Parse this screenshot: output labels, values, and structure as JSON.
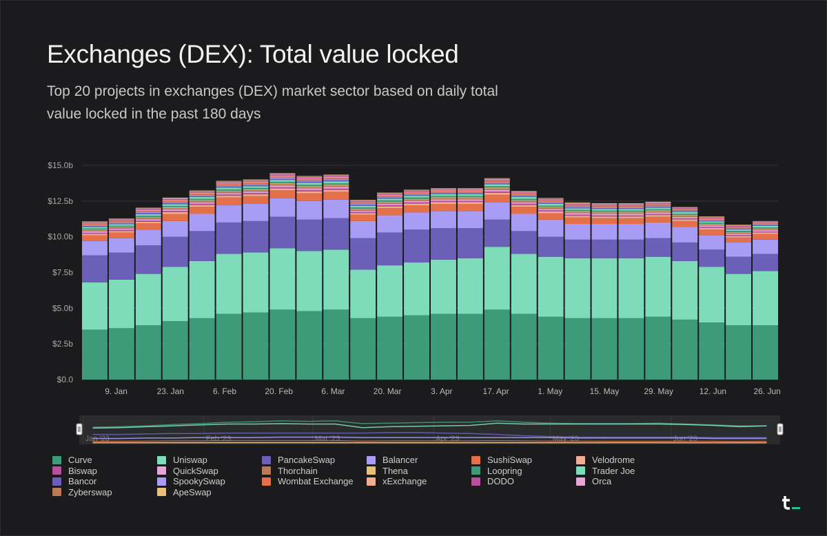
{
  "header": {
    "title": "Exchanges (DEX): Total value locked",
    "subtitle": "Top 20 projects in exchanges (DEX) market sector based on daily total value locked in the past 180 days"
  },
  "logo": {
    "text": "t_"
  },
  "chart_data": {
    "type": "bar",
    "stacked": true,
    "title": "Exchanges (DEX): Total value locked",
    "subtitle": "Top 20 projects in exchanges (DEX) market sector based on daily total value locked in the past 180 days",
    "ylim": [
      0,
      15
    ],
    "y_ticks": [
      "$0.0",
      "$2.5b",
      "$5.0b",
      "$7.5b",
      "$10.0b",
      "$12.5b",
      "$15.0b"
    ],
    "x_ticks": [
      "9. Jan",
      "23. Jan",
      "6. Feb",
      "20. Feb",
      "6. Mar",
      "20. Mar",
      "3. Apr",
      "17. Apr",
      "1. May",
      "15. May",
      "29. May",
      "12. Jun",
      "26. Jun"
    ],
    "navigator_ticks": [
      "Jan '23",
      "Feb '23",
      "Mar '23",
      "Apr '23",
      "May '23",
      "Jun '23"
    ],
    "grid": true,
    "legend_position": "bottom",
    "unit": "USD billions",
    "x": [
      "2023-01-02",
      "2023-01-09",
      "2023-01-16",
      "2023-01-23",
      "2023-01-30",
      "2023-02-06",
      "2023-02-13",
      "2023-02-20",
      "2023-02-27",
      "2023-03-06",
      "2023-03-13",
      "2023-03-20",
      "2023-03-27",
      "2023-04-03",
      "2023-04-10",
      "2023-04-17",
      "2023-04-24",
      "2023-05-01",
      "2023-05-08",
      "2023-05-15",
      "2023-05-22",
      "2023-05-29",
      "2023-06-05",
      "2023-06-12",
      "2023-06-19",
      "2023-06-26"
    ],
    "series": [
      {
        "name": "Curve",
        "color": "#3f9a7a",
        "values": [
          3.5,
          3.6,
          3.8,
          4.1,
          4.3,
          4.6,
          4.7,
          4.9,
          4.8,
          4.9,
          4.3,
          4.4,
          4.5,
          4.6,
          4.6,
          4.9,
          4.6,
          4.4,
          4.3,
          4.3,
          4.3,
          4.4,
          4.2,
          4.0,
          3.8,
          3.8
        ]
      },
      {
        "name": "Uniswap",
        "color": "#7fdcbb",
        "values": [
          3.3,
          3.4,
          3.6,
          3.8,
          4.0,
          4.2,
          4.2,
          4.3,
          4.2,
          4.2,
          3.4,
          3.6,
          3.7,
          3.8,
          3.9,
          4.4,
          4.2,
          4.2,
          4.2,
          4.2,
          4.2,
          4.2,
          4.1,
          3.9,
          3.6,
          3.8
        ]
      },
      {
        "name": "PancakeSwap",
        "color": "#6b5fb8",
        "values": [
          1.9,
          1.9,
          2.0,
          2.1,
          2.1,
          2.2,
          2.2,
          2.2,
          2.2,
          2.2,
          2.2,
          2.3,
          2.3,
          2.2,
          2.1,
          1.9,
          1.6,
          1.4,
          1.3,
          1.3,
          1.3,
          1.3,
          1.3,
          1.2,
          1.2,
          1.2
        ]
      },
      {
        "name": "Balancer",
        "color": "#a99cf5",
        "values": [
          1.0,
          1.0,
          1.1,
          1.1,
          1.2,
          1.2,
          1.2,
          1.3,
          1.3,
          1.3,
          1.2,
          1.2,
          1.2,
          1.2,
          1.2,
          1.2,
          1.2,
          1.2,
          1.1,
          1.1,
          1.1,
          1.1,
          1.1,
          1.0,
          1.0,
          1.0
        ]
      },
      {
        "name": "SushiSwap",
        "color": "#e4704a",
        "values": [
          0.4,
          0.4,
          0.45,
          0.5,
          0.5,
          0.55,
          0.55,
          0.55,
          0.55,
          0.55,
          0.45,
          0.5,
          0.5,
          0.5,
          0.5,
          0.55,
          0.5,
          0.45,
          0.45,
          0.4,
          0.4,
          0.4,
          0.4,
          0.4,
          0.35,
          0.4
        ]
      },
      {
        "name": "Velodrome",
        "color": "#f2ae92",
        "values": [
          0.1,
          0.1,
          0.1,
          0.12,
          0.12,
          0.12,
          0.12,
          0.13,
          0.13,
          0.13,
          0.11,
          0.12,
          0.12,
          0.12,
          0.12,
          0.13,
          0.12,
          0.12,
          0.12,
          0.12,
          0.12,
          0.12,
          0.11,
          0.11,
          0.1,
          0.1
        ]
      },
      {
        "name": "Biswap",
        "color": "#b5519f",
        "values": [
          0.08,
          0.08,
          0.08,
          0.09,
          0.09,
          0.09,
          0.09,
          0.09,
          0.09,
          0.09,
          0.08,
          0.09,
          0.09,
          0.09,
          0.09,
          0.09,
          0.09,
          0.08,
          0.08,
          0.08,
          0.08,
          0.08,
          0.08,
          0.08,
          0.07,
          0.07
        ]
      },
      {
        "name": "QuickSwap",
        "color": "#e7a6d6",
        "values": [
          0.09,
          0.09,
          0.1,
          0.1,
          0.1,
          0.1,
          0.1,
          0.11,
          0.11,
          0.11,
          0.09,
          0.1,
          0.1,
          0.1,
          0.1,
          0.11,
          0.1,
          0.1,
          0.1,
          0.1,
          0.1,
          0.1,
          0.09,
          0.09,
          0.09,
          0.09
        ]
      },
      {
        "name": "Thorchain",
        "color": "#b97a55",
        "values": [
          0.08,
          0.08,
          0.09,
          0.1,
          0.1,
          0.1,
          0.1,
          0.1,
          0.1,
          0.1,
          0.09,
          0.09,
          0.09,
          0.1,
          0.1,
          0.1,
          0.1,
          0.09,
          0.09,
          0.09,
          0.09,
          0.09,
          0.09,
          0.08,
          0.08,
          0.08
        ]
      },
      {
        "name": "Thena",
        "color": "#e7c27b",
        "values": [
          0.04,
          0.04,
          0.05,
          0.05,
          0.05,
          0.05,
          0.05,
          0.06,
          0.06,
          0.06,
          0.05,
          0.05,
          0.05,
          0.05,
          0.05,
          0.06,
          0.05,
          0.05,
          0.05,
          0.05,
          0.05,
          0.05,
          0.05,
          0.04,
          0.04,
          0.04
        ]
      },
      {
        "name": "Loopring",
        "color": "#3f9a7a",
        "values": [
          0.09,
          0.09,
          0.1,
          0.1,
          0.1,
          0.11,
          0.11,
          0.11,
          0.11,
          0.11,
          0.09,
          0.1,
          0.1,
          0.1,
          0.1,
          0.1,
          0.1,
          0.09,
          0.09,
          0.09,
          0.09,
          0.09,
          0.09,
          0.08,
          0.08,
          0.08
        ]
      },
      {
        "name": "Trader Joe",
        "color": "#7fdcbb",
        "values": [
          0.1,
          0.1,
          0.11,
          0.12,
          0.12,
          0.12,
          0.12,
          0.13,
          0.13,
          0.13,
          0.11,
          0.12,
          0.12,
          0.12,
          0.12,
          0.13,
          0.12,
          0.12,
          0.11,
          0.11,
          0.11,
          0.11,
          0.11,
          0.1,
          0.1,
          0.1
        ]
      },
      {
        "name": "Bancor",
        "color": "#6b5fb8",
        "values": [
          0.07,
          0.07,
          0.08,
          0.08,
          0.08,
          0.08,
          0.08,
          0.08,
          0.08,
          0.08,
          0.07,
          0.07,
          0.07,
          0.07,
          0.07,
          0.07,
          0.07,
          0.07,
          0.07,
          0.07,
          0.07,
          0.07,
          0.06,
          0.06,
          0.06,
          0.06
        ]
      },
      {
        "name": "SpookySwap",
        "color": "#a99cf5",
        "values": [
          0.06,
          0.06,
          0.07,
          0.07,
          0.07,
          0.07,
          0.07,
          0.07,
          0.07,
          0.07,
          0.06,
          0.06,
          0.06,
          0.06,
          0.06,
          0.06,
          0.06,
          0.06,
          0.06,
          0.06,
          0.06,
          0.06,
          0.05,
          0.05,
          0.05,
          0.05
        ]
      },
      {
        "name": "Wombat Exchange",
        "color": "#e4704a",
        "values": [
          0.07,
          0.07,
          0.08,
          0.08,
          0.08,
          0.09,
          0.09,
          0.09,
          0.09,
          0.09,
          0.08,
          0.08,
          0.08,
          0.08,
          0.08,
          0.08,
          0.08,
          0.07,
          0.07,
          0.07,
          0.07,
          0.07,
          0.07,
          0.06,
          0.06,
          0.06
        ]
      },
      {
        "name": "xExchange",
        "color": "#f2ae92",
        "values": [
          0.05,
          0.05,
          0.06,
          0.06,
          0.06,
          0.06,
          0.06,
          0.06,
          0.06,
          0.06,
          0.05,
          0.05,
          0.05,
          0.05,
          0.05,
          0.05,
          0.05,
          0.05,
          0.05,
          0.05,
          0.05,
          0.05,
          0.05,
          0.05,
          0.04,
          0.04
        ]
      },
      {
        "name": "DODO",
        "color": "#b5519f",
        "values": [
          0.05,
          0.05,
          0.06,
          0.06,
          0.06,
          0.06,
          0.06,
          0.06,
          0.06,
          0.06,
          0.05,
          0.05,
          0.05,
          0.05,
          0.05,
          0.06,
          0.05,
          0.05,
          0.05,
          0.05,
          0.05,
          0.05,
          0.05,
          0.05,
          0.05,
          0.05
        ]
      },
      {
        "name": "Orca",
        "color": "#e7a6d6",
        "values": [
          0.04,
          0.04,
          0.05,
          0.05,
          0.05,
          0.05,
          0.05,
          0.05,
          0.05,
          0.05,
          0.04,
          0.05,
          0.05,
          0.05,
          0.05,
          0.05,
          0.05,
          0.05,
          0.05,
          0.05,
          0.05,
          0.05,
          0.04,
          0.04,
          0.04,
          0.04
        ]
      },
      {
        "name": "Zyberswap",
        "color": "#b97a55",
        "values": [
          0.02,
          0.02,
          0.02,
          0.03,
          0.03,
          0.03,
          0.03,
          0.03,
          0.03,
          0.03,
          0.03,
          0.03,
          0.03,
          0.03,
          0.03,
          0.03,
          0.03,
          0.03,
          0.03,
          0.03,
          0.03,
          0.03,
          0.02,
          0.02,
          0.02,
          0.02
        ]
      },
      {
        "name": "ApeSwap",
        "color": "#e7c27b",
        "values": [
          0.03,
          0.03,
          0.03,
          0.03,
          0.03,
          0.03,
          0.03,
          0.03,
          0.03,
          0.03,
          0.03,
          0.03,
          0.03,
          0.03,
          0.03,
          0.03,
          0.03,
          0.03,
          0.03,
          0.03,
          0.03,
          0.03,
          0.02,
          0.02,
          0.02,
          0.02
        ]
      }
    ]
  },
  "legend": [
    {
      "label": "Curve",
      "color": "#3f9a7a"
    },
    {
      "label": "Uniswap",
      "color": "#7fdcbb"
    },
    {
      "label": "PancakeSwap",
      "color": "#6b5fb8"
    },
    {
      "label": "Balancer",
      "color": "#a99cf5"
    },
    {
      "label": "SushiSwap",
      "color": "#e4704a"
    },
    {
      "label": "Velodrome",
      "color": "#f2ae92"
    },
    {
      "label": "Biswap",
      "color": "#b5519f"
    },
    {
      "label": "QuickSwap",
      "color": "#e7a6d6"
    },
    {
      "label": "Thorchain",
      "color": "#b97a55"
    },
    {
      "label": "Thena",
      "color": "#e7c27b"
    },
    {
      "label": "Loopring",
      "color": "#3f9a7a"
    },
    {
      "label": "Trader Joe",
      "color": "#7fdcbb"
    },
    {
      "label": "Bancor",
      "color": "#6b5fb8"
    },
    {
      "label": "SpookySwap",
      "color": "#a99cf5"
    },
    {
      "label": "Wombat Exchange",
      "color": "#e4704a"
    },
    {
      "label": "xExchange",
      "color": "#f2ae92"
    },
    {
      "label": "DODO",
      "color": "#b5519f"
    },
    {
      "label": "Orca",
      "color": "#e7a6d6"
    },
    {
      "label": "Zyberswap",
      "color": "#b97a55"
    },
    {
      "label": "ApeSwap",
      "color": "#e7c27b"
    }
  ]
}
